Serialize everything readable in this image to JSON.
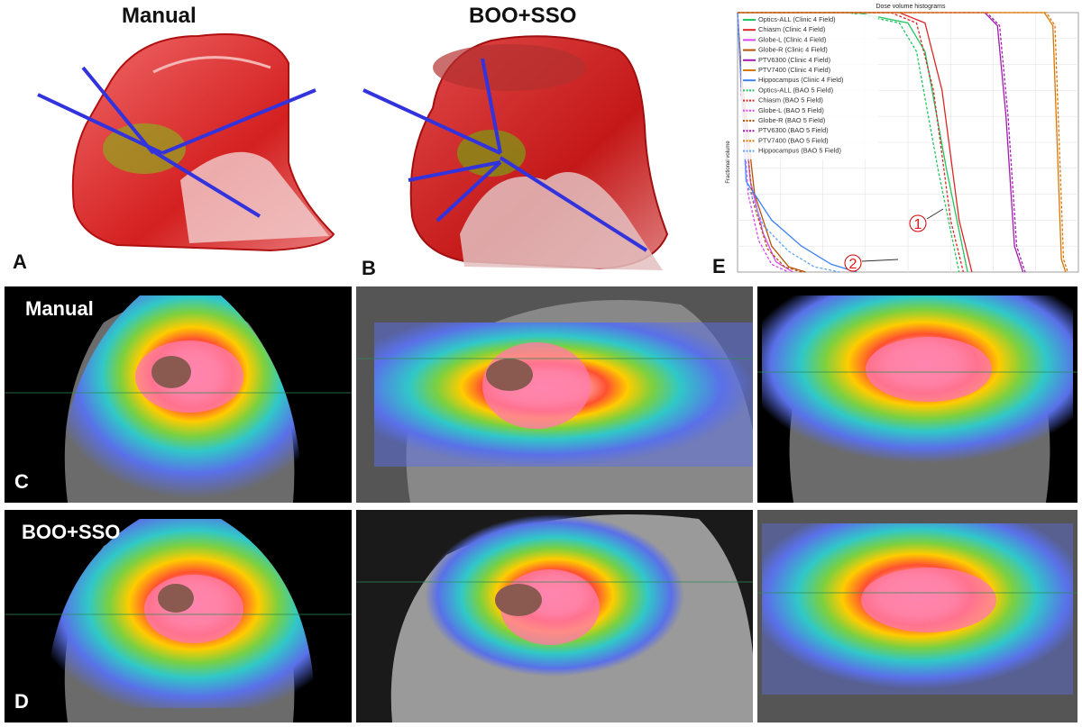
{
  "panels": {
    "a": {
      "letter": "A",
      "title": "Manual"
    },
    "b": {
      "letter": "B",
      "title": "BOO+SSO"
    },
    "c": {
      "letter": "C",
      "title": "Manual"
    },
    "d": {
      "letter": "D",
      "title": "BOO+SSO"
    },
    "e": {
      "letter": "E"
    }
  },
  "chart_data": {
    "type": "line",
    "title": "Dose volume histograms",
    "ylabel": "Fractional volume",
    "xlabel": "",
    "ylim": [
      0,
      1
    ],
    "xlim": [
      0,
      80
    ],
    "grid": true,
    "legend_position": "top-left",
    "annotations": [
      "1",
      "2"
    ],
    "series": [
      {
        "name": "Optics-ALL (Clinic 4 Field)",
        "color": "#22c55e",
        "dash": false,
        "x": [
          0,
          28,
          40,
          44,
          49,
          54
        ],
        "y": [
          1,
          1,
          0.96,
          0.85,
          0.4,
          0.0
        ]
      },
      {
        "name": "Chiasm (Clinic 4 Field)",
        "color": "#dc2626",
        "dash": false,
        "x": [
          0,
          38,
          44,
          48,
          52,
          55
        ],
        "y": [
          1,
          1,
          0.96,
          0.7,
          0.2,
          0.0
        ]
      },
      {
        "name": "Globe-L (Clinic 4 Field)",
        "color": "#d946ef",
        "dash": false,
        "x": [
          0,
          1,
          3,
          6,
          9,
          13
        ],
        "y": [
          1,
          0.7,
          0.35,
          0.15,
          0.04,
          0.0
        ]
      },
      {
        "name": "Globe-R (Clinic 4 Field)",
        "color": "#b45309",
        "dash": false,
        "x": [
          0,
          1,
          4,
          8,
          12,
          16
        ],
        "y": [
          1,
          0.75,
          0.3,
          0.1,
          0.02,
          0.0
        ]
      },
      {
        "name": "PTV6300 (Clinic 4 Field)",
        "color": "#a21caf",
        "dash": false,
        "x": [
          0,
          58,
          61,
          63,
          65,
          67
        ],
        "y": [
          1,
          1,
          0.95,
          0.6,
          0.1,
          0.0
        ]
      },
      {
        "name": "PTV7400 (Clinic 4 Field)",
        "color": "#d97706",
        "dash": false,
        "x": [
          0,
          72,
          74,
          75,
          76,
          77
        ],
        "y": [
          1,
          1,
          0.95,
          0.5,
          0.05,
          0.0
        ]
      },
      {
        "name": "Hippocampus (Clinic 4 Field)",
        "color": "#3b82f6",
        "dash": false,
        "x": [
          0,
          2,
          8,
          15,
          22,
          28
        ],
        "y": [
          1,
          0.35,
          0.2,
          0.1,
          0.03,
          0.0
        ]
      },
      {
        "name": "Optics-ALL (BAO 5 Field)",
        "color": "#22c55e",
        "dash": true,
        "x": [
          0,
          26,
          38,
          42,
          47,
          52
        ],
        "y": [
          1,
          1,
          0.96,
          0.85,
          0.4,
          0.0
        ]
      },
      {
        "name": "Chiasm (BAO 5 Field)",
        "color": "#dc2626",
        "dash": true,
        "x": [
          0,
          36,
          42,
          46,
          50,
          53
        ],
        "y": [
          1,
          1,
          0.96,
          0.7,
          0.2,
          0.0
        ]
      },
      {
        "name": "Globe-L (BAO 5 Field)",
        "color": "#d946ef",
        "dash": true,
        "x": [
          0,
          1,
          2.5,
          5,
          8,
          12
        ],
        "y": [
          1,
          0.65,
          0.3,
          0.12,
          0.03,
          0.0
        ]
      },
      {
        "name": "Globe-R (BAO 5 Field)",
        "color": "#b45309",
        "dash": true,
        "x": [
          0,
          1,
          3.5,
          7,
          11,
          15
        ],
        "y": [
          1,
          0.7,
          0.28,
          0.09,
          0.02,
          0.0
        ]
      },
      {
        "name": "PTV6300 (BAO 5 Field)",
        "color": "#a21caf",
        "dash": true,
        "x": [
          0,
          58.5,
          61.5,
          63.5,
          65.5,
          67.5
        ],
        "y": [
          1,
          1,
          0.95,
          0.6,
          0.1,
          0.0
        ]
      },
      {
        "name": "PTV7400 (BAO 5 Field)",
        "color": "#d97706",
        "dash": true,
        "x": [
          0,
          72.5,
          74.5,
          75.5,
          76.5,
          77.5
        ],
        "y": [
          1,
          1,
          0.95,
          0.5,
          0.05,
          0.0
        ]
      },
      {
        "name": "Hippocampus (BAO 5 Field)",
        "color": "#60a5fa",
        "dash": true,
        "x": [
          0,
          2,
          6,
          12,
          18,
          24
        ],
        "y": [
          1,
          0.35,
          0.18,
          0.08,
          0.02,
          0.0
        ]
      }
    ]
  }
}
